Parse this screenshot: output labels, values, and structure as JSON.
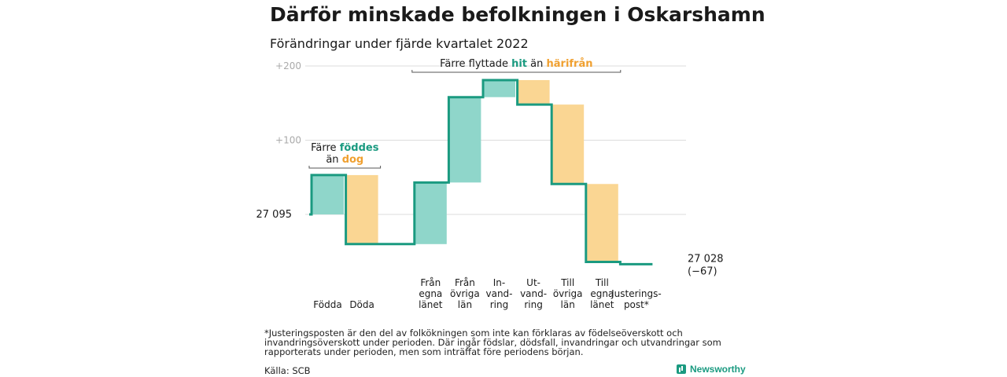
{
  "title": "Därför minskade befolkningen i Oskarshamn",
  "subtitle": "Förändringar under fjärde kvartalet 2022",
  "footnote": "*Justeringsposten är den del av folkökningen som inte kan förklaras av födelseöverskott och invandringsöverskott under perioden. Där ingår födslar, dödsfall, invandringar och utvandringar som rapporterats under perioden, men som inträffat före periodens början.",
  "source": "Källa: SCB",
  "brand": "Newsworthy",
  "colors": {
    "increase": "#8fd6ca",
    "decrease": "#fad693",
    "line": "#1a9a80",
    "accent_orange": "#f0a030",
    "grid": "#dddddd"
  },
  "chart_data": {
    "type": "waterfall",
    "title": "Därför minskade befolkningen i Oskarshamn",
    "subtitle": "Förändringar under fjärde kvartalet 2022",
    "start_value": 27095,
    "start_label": "27 095",
    "end_value": 27028,
    "end_label": [
      "27 028",
      "(−67)"
    ],
    "yticks": [
      {
        "value": 100,
        "label": "+100"
      },
      {
        "value": 200,
        "label": "+200"
      }
    ],
    "steps": [
      {
        "label": [
          "Födda"
        ],
        "delta": 53,
        "kind": "increase"
      },
      {
        "label": [
          "Döda"
        ],
        "delta": -93,
        "kind": "decrease"
      },
      {
        "label": [
          ""
        ],
        "delta": 0,
        "kind": "none"
      },
      {
        "label": [
          "Från",
          "egna",
          "länet"
        ],
        "delta": 83,
        "kind": "increase"
      },
      {
        "label": [
          "Från",
          "övriga",
          "län"
        ],
        "delta": 115,
        "kind": "increase"
      },
      {
        "label": [
          "In-",
          "vand-",
          "ring"
        ],
        "delta": 23,
        "kind": "increase"
      },
      {
        "label": [
          "Ut-",
          "vand-",
          "ring"
        ],
        "delta": -33,
        "kind": "decrease"
      },
      {
        "label": [
          "Till",
          "övriga",
          "län"
        ],
        "delta": -107,
        "kind": "decrease"
      },
      {
        "label": [
          "Till",
          "egna",
          "länet"
        ],
        "delta": -105,
        "kind": "decrease"
      },
      {
        "label": [
          "Justerings-",
          "post*"
        ],
        "delta": -3,
        "kind": "adjust"
      }
    ],
    "annotations": [
      {
        "lines": [
          [
            "Färre ",
            "föddes"
          ],
          [
            "än ",
            "dog"
          ]
        ],
        "span": [
          0,
          1
        ]
      },
      {
        "lines": [
          [
            "Färre flyttade ",
            "hit",
            " än ",
            "härifrån"
          ]
        ],
        "span": [
          3,
          8
        ]
      }
    ]
  }
}
